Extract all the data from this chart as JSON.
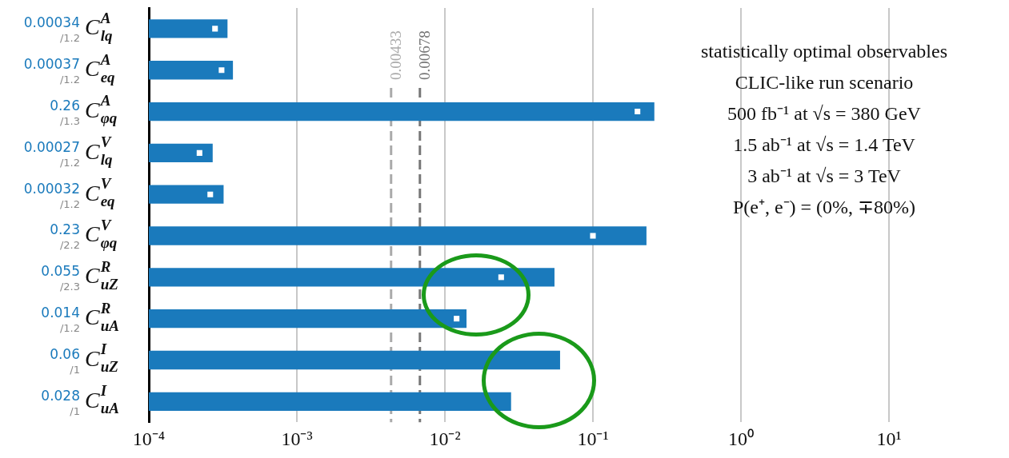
{
  "chart_data": {
    "type": "bar",
    "orientation": "horizontal",
    "log": "x",
    "grid": "x",
    "legend": false,
    "categories": [
      "C$^{A}$$_{lq}$",
      "C$^{A}$$_{eq}$",
      "C$^{A}$$_{φq}$",
      "C$^{V}$$_{lq}$",
      "C$^{V}$$_{eq}$",
      "C$^{V}$$_{φq}$",
      "C$^{R}$$_{uZ}$",
      "C$^{R}$$_{uA}$",
      "C$^{I}$$_{uZ}$",
      "C$^{I}$$_{uA}$"
    ],
    "series": [
      {
        "color": "#1a7abc",
        "values": [
          0.00034,
          0.00037,
          0.26,
          0.00027,
          0.00032,
          0.23,
          0.055,
          0.014,
          0.06,
          0.028
        ],
        "value_labels": [
          "0.00034",
          "0.00037",
          "0.26",
          "0.00027",
          "0.00032",
          "0.23",
          "0.055",
          "0.014",
          "0.06",
          "0.028"
        ]
      },
      {
        "type": "scatter",
        "color": "#ffffff",
        "marker": "square",
        "x": [
          "C$^{A}$$_{lq}$",
          "C$^{A}$$_{eq}$",
          "C$^{A}$$_{φq}$",
          "C$^{V}$$_{lq}$",
          "C$^{V}$$_{eq}$",
          "C$^{V}$$_{φq}$",
          "C$^{R}$$_{uZ}$",
          "C$^{R}$$_{uA}$",
          "C$^{I}$$_{uZ}$",
          "C$^{I}$$_{uA}$"
        ],
        "values": [
          0.00028,
          0.00031,
          0.2,
          0.00022,
          0.00026,
          0.1,
          0.024,
          0.012,
          null,
          null
        ]
      }
    ],
    "xlim": [
      0.0001,
      10
    ],
    "xticks": [
      {
        "value": 0.0001,
        "label": "10⁻⁴"
      },
      {
        "value": 0.001,
        "label": "10⁻³"
      },
      {
        "value": 0.01,
        "label": "10⁻²"
      },
      {
        "value": 0.1,
        "label": "10⁻¹"
      },
      {
        "value": 1,
        "label": "10⁰"
      },
      {
        "value": 10,
        "label": "10¹"
      }
    ],
    "ref_lines": [
      {
        "axis": "x",
        "value": 0.00433,
        "label": "0.00433",
        "color": "#aaaaaa",
        "line_style": "dashed"
      },
      {
        "axis": "x",
        "value": 0.00678,
        "label": "0.00678",
        "color": "#777777",
        "line_style": "dashed"
      }
    ],
    "annotations": [
      "/1.2",
      "/1.2",
      "/1.3",
      "/1.2",
      "/1.2",
      "/2.2",
      "/2.3",
      "/1.2",
      "/1",
      "/1",
      "statistically optimal observables",
      "CLIC-like run scenario",
      "500 fb⁻¹ at √s = 380 GeV",
      "1.5 ab⁻¹ at √s = 1.4 TeV",
      "3 ab⁻¹ at √s = 3 TeV",
      "P(e⁺, e⁻) = (0%, ∓80%)"
    ]
  }
}
